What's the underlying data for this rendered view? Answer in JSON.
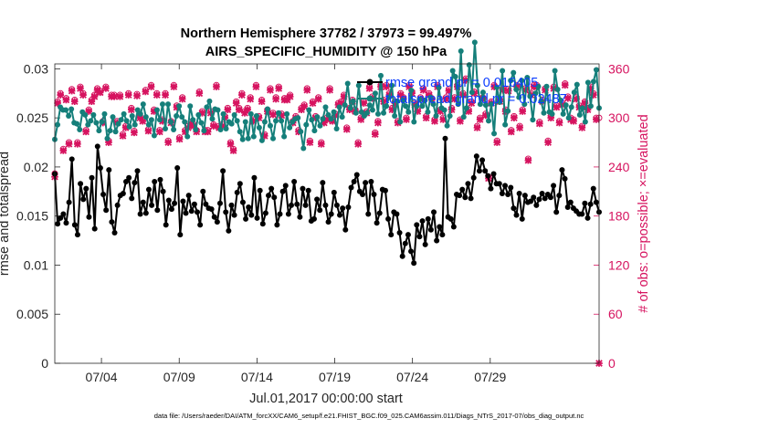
{
  "chart_data": {
    "type": "line",
    "title_line1": "Northern Hemisphere 37782 / 37973 = 99.497%",
    "title_line2": "AIRS_SPECIFIC_HUMIDITY @ 150 hPa",
    "xlabel": "Jul.01,2017 00:00:00 start",
    "ylabel_left": "rmse and totalspread",
    "ylabel_right": "# of obs: o=possible; ×=evaluated",
    "footer": "data file: /Users/raeder/DAI/ATM_forcXX/CAM6_setup/f.e21.FHIST_BGC.f09_025.CAM6assim.011/Diags_NTrS_2017-07/obs_diag_output.nc",
    "x_range": [
      1,
      36
    ],
    "xticks": [
      4,
      9,
      14,
      19,
      24,
      29
    ],
    "xtick_labels": [
      "07/04",
      "07/09",
      "07/14",
      "07/19",
      "07/24",
      "07/29"
    ],
    "ylim_left": [
      0,
      0.0305
    ],
    "yticks_left": [
      0,
      0.005,
      0.01,
      0.015,
      0.02,
      0.025,
      0.03
    ],
    "ytick_labels_left": [
      "0",
      "0.005",
      "0.01",
      "0.015",
      "0.02",
      "0.025",
      "0.03"
    ],
    "ylim_right": [
      0,
      366
    ],
    "yticks_right": [
      0,
      60,
      120,
      180,
      240,
      300,
      360
    ],
    "ytick_labels_right": [
      "0",
      "60",
      "120",
      "180",
      "240",
      "300",
      "360"
    ],
    "series": [
      {
        "name": "rmse grand pr = 0.016405",
        "color": "#000000",
        "axis": "left",
        "values": [
          0.0193,
          0.0142,
          0.0148,
          0.0152,
          0.0143,
          0.0164,
          0.0208,
          0.0141,
          0.0131,
          0.0183,
          0.0167,
          0.0178,
          0.0149,
          0.0189,
          0.0137,
          0.0221,
          0.0199,
          0.0172,
          0.0156,
          0.0197,
          0.0144,
          0.0133,
          0.0161,
          0.0171,
          0.0173,
          0.0185,
          0.0189,
          0.0168,
          0.0184,
          0.0196,
          0.0152,
          0.0164,
          0.0153,
          0.0177,
          0.0161,
          0.0185,
          0.0156,
          0.0187,
          0.0175,
          0.0141,
          0.0166,
          0.0157,
          0.0163,
          0.0199,
          0.0131,
          0.0165,
          0.0153,
          0.0171,
          0.0155,
          0.0162,
          0.0154,
          0.0141,
          0.0175,
          0.0162,
          0.0158,
          0.0157,
          0.0149,
          0.0144,
          0.0163,
          0.0196,
          0.0154,
          0.0135,
          0.0161,
          0.0151,
          0.0174,
          0.0183,
          0.0164,
          0.0147,
          0.0159,
          0.0151,
          0.0189,
          0.0148,
          0.0176,
          0.0142,
          0.0153,
          0.0171,
          0.0178,
          0.0169,
          0.0141,
          0.0152,
          0.0175,
          0.0181,
          0.0152,
          0.0161,
          0.0185,
          0.0162,
          0.0149,
          0.0178,
          0.0161,
          0.0176,
          0.0145,
          0.0147,
          0.0167,
          0.0156,
          0.0184,
          0.0161,
          0.0144,
          0.0152,
          0.0174,
          0.0161,
          0.0151,
          0.0158,
          0.0136,
          0.0159,
          0.0179,
          0.0185,
          0.0192,
          0.0175,
          0.0172,
          0.0184,
          0.0152,
          0.0185,
          0.0172,
          0.0143,
          0.0153,
          0.0177,
          0.0176,
          0.0147,
          0.0131,
          0.0154,
          0.0152,
          0.0133,
          0.0109,
          0.0122,
          0.0131,
          0.0114,
          0.0102,
          0.0141,
          0.0129,
          0.0145,
          0.0121,
          0.0147,
          0.0136,
          0.0154,
          0.0125,
          0.0139,
          0.0131,
          0.0229,
          0.0149,
          0.0147,
          0.0139,
          0.0172,
          0.0171,
          0.0177,
          0.0169,
          0.0183,
          0.0168,
          0.0189,
          0.0211,
          0.0196,
          0.0207,
          0.0196,
          0.0191,
          0.0178,
          0.0193,
          0.0183,
          0.0183,
          0.0173,
          0.0181,
          0.0172,
          0.0179,
          0.0158,
          0.0151,
          0.0173,
          0.0147,
          0.0171,
          0.0164,
          0.0165,
          0.0169,
          0.0161,
          0.0167,
          0.0173,
          0.0168,
          0.0172,
          0.0169,
          0.0181,
          0.0154,
          0.0171,
          0.0197,
          0.0188,
          0.0159,
          0.0164,
          0.0158,
          0.0155,
          0.0152,
          0.0152,
          0.0163,
          0.0148,
          0.0162,
          0.0178,
          0.0164,
          0.0154
        ]
      },
      {
        "name": "totalspread grand pr = 0.02487",
        "color": "#157f7a",
        "axis": "left",
        "values": [
          0.0228,
          0.0243,
          0.0261,
          0.0258,
          0.0258,
          0.0252,
          0.0259,
          0.0245,
          0.0244,
          0.0238,
          0.0256,
          0.0253,
          0.0243,
          0.0247,
          0.0253,
          0.0245,
          0.0237,
          0.0246,
          0.0254,
          0.0229,
          0.0237,
          0.0251,
          0.0236,
          0.0244,
          0.0248,
          0.0254,
          0.0247,
          0.0241,
          0.0252,
          0.0243,
          0.0258,
          0.0254,
          0.0264,
          0.0251,
          0.0243,
          0.0248,
          0.0232,
          0.0258,
          0.0248,
          0.0264,
          0.0239,
          0.0264,
          0.0246,
          0.0238,
          0.0252,
          0.0262,
          0.0251,
          0.0246,
          0.0231,
          0.0262,
          0.0248,
          0.0238,
          0.0253,
          0.0245,
          0.0237,
          0.0261,
          0.0267,
          0.0249,
          0.0259,
          0.0258,
          0.0238,
          0.0254,
          0.0239,
          0.0246,
          0.0244,
          0.0253,
          0.0247,
          0.0236,
          0.0228,
          0.0246,
          0.0229,
          0.0254,
          0.0231,
          0.0252,
          0.024,
          0.0227,
          0.0246,
          0.0259,
          0.0242,
          0.0229,
          0.0247,
          0.0255,
          0.0247,
          0.0231,
          0.0254,
          0.024,
          0.0246,
          0.0249,
          0.025,
          0.0236,
          0.0219,
          0.0243,
          0.0258,
          0.0248,
          0.0237,
          0.0251,
          0.0242,
          0.0249,
          0.0261,
          0.0253,
          0.0249,
          0.0256,
          0.0239,
          0.0261,
          0.0251,
          0.0263,
          0.0285,
          0.026,
          0.0267,
          0.0255,
          0.0283,
          0.0256,
          0.0252,
          0.0255,
          0.0263,
          0.0258,
          0.0275,
          0.0254,
          0.0293,
          0.0255,
          0.0262,
          0.0271,
          0.0283,
          0.0252,
          0.0267,
          0.0246,
          0.0268,
          0.0262,
          0.0256,
          0.0278,
          0.0246,
          0.0262,
          0.0269,
          0.0262,
          0.0268,
          0.0256,
          0.0271,
          0.0264,
          0.0252,
          0.0281,
          0.026,
          0.0258,
          0.0242,
          0.0252,
          0.0298,
          0.0292,
          0.0264,
          0.0318,
          0.0251,
          0.026,
          0.0304,
          0.0276,
          0.0327,
          0.0283,
          0.0264,
          0.0276,
          0.0263,
          0.0247,
          0.0264,
          0.0234,
          0.0281,
          0.0266,
          0.0298,
          0.0243,
          0.0257,
          0.0288,
          0.0296,
          0.0279,
          0.0271,
          0.0288,
          0.0264,
          0.0291,
          0.0272,
          0.0248,
          0.0275,
          0.0282,
          0.0267,
          0.0255,
          0.0282,
          0.0256,
          0.0254,
          0.0298,
          0.0279,
          0.0268,
          0.0254,
          0.0263,
          0.025,
          0.0261,
          0.0276,
          0.0284,
          0.0253,
          0.026,
          0.0246,
          0.0286,
          0.0262,
          0.0287,
          0.0299,
          0.026
        ]
      },
      {
        "name": "# of obs possible",
        "color": "#d6135f",
        "axis": "right",
        "marker": "o",
        "values": [
          232,
          320,
          330,
          262,
          324,
          270,
          335,
          322,
          270,
          338,
          330,
          285,
          310,
          322,
          328,
          336,
          333,
          296,
          338,
          272,
          328,
          328,
          296,
          328,
          280,
          290,
          330,
          312,
          284,
          329,
          302,
          298,
          334,
          286,
          340,
          310,
          330,
          285,
          298,
          330,
          272,
          296,
          340,
          315,
          276,
          325,
          285,
          290,
          295,
          292,
          285,
          332,
          308,
          285,
          285,
          308,
          292,
          340,
          290,
          292,
          302,
          312,
          270,
          262,
          320,
          312,
          330,
          308,
          312,
          325,
          298,
          340,
          302,
          322,
          280,
          310,
          336,
          306,
          325,
          338,
          305,
          324,
          324,
          328,
          296,
          302,
          285,
          312,
          316,
          336,
          272,
          320,
          302,
          325,
          270,
          296,
          300,
          336,
          298,
          305,
          318,
          320,
          328,
          288,
          312,
          322,
          310,
          270,
          300,
          320,
          308,
          338,
          326,
          282,
          296,
          340,
          322,
          340,
          330,
          312,
          320,
          296,
          330,
          325,
          300,
          340,
          332,
          318,
          310,
          325,
          336,
          302,
          330,
          324,
          298,
          340,
          310,
          300,
          325,
          335,
          312,
          325,
          340,
          298,
          330,
          348,
          310,
          320,
          332,
          290,
          300,
          325,
          305,
          228,
          320,
          340,
          272,
          322,
          336,
          310,
          335,
          285,
          302,
          340,
          290,
          310,
          336,
          250,
          330,
          340,
          340,
          295,
          322,
          336,
          272,
          302,
          338,
          315,
          296,
          318,
          342,
          326,
          300,
          298,
          325,
          315,
          290,
          320,
          312,
          338,
          330,
          300,
          300
        ]
      },
      {
        "name": "# of obs evaluated",
        "color": "#d6135f",
        "axis": "right",
        "marker": "x",
        "values": [
          228,
          318,
          328,
          260,
          322,
          268,
          333,
          320,
          268,
          336,
          328,
          283,
          308,
          320,
          326,
          334,
          331,
          294,
          336,
          270,
          326,
          326,
          294,
          326,
          278,
          288,
          328,
          310,
          282,
          327,
          300,
          296,
          332,
          284,
          338,
          308,
          328,
          283,
          296,
          328,
          270,
          294,
          338,
          313,
          274,
          323,
          283,
          288,
          293,
          290,
          283,
          330,
          306,
          283,
          283,
          306,
          290,
          338,
          288,
          290,
          300,
          310,
          268,
          260,
          318,
          310,
          328,
          306,
          310,
          323,
          296,
          338,
          300,
          320,
          278,
          308,
          334,
          304,
          323,
          336,
          303,
          322,
          322,
          326,
          294,
          300,
          283,
          310,
          314,
          334,
          270,
          318,
          300,
          323,
          268,
          294,
          298,
          334,
          296,
          303,
          316,
          318,
          326,
          286,
          310,
          320,
          308,
          268,
          298,
          318,
          306,
          336,
          324,
          280,
          294,
          338,
          320,
          338,
          328,
          310,
          318,
          294,
          328,
          323,
          298,
          338,
          330,
          316,
          308,
          323,
          334,
          300,
          328,
          322,
          296,
          338,
          308,
          298,
          323,
          333,
          310,
          323,
          338,
          296,
          328,
          346,
          308,
          318,
          330,
          288,
          298,
          323,
          303,
          226,
          318,
          338,
          270,
          320,
          334,
          308,
          333,
          283,
          300,
          338,
          288,
          308,
          334,
          248,
          328,
          338,
          338,
          293,
          320,
          334,
          270,
          300,
          336,
          313,
          294,
          316,
          340,
          324,
          298,
          296,
          323,
          313,
          288,
          318,
          310,
          336,
          328,
          298,
          0
        ]
      }
    ]
  }
}
